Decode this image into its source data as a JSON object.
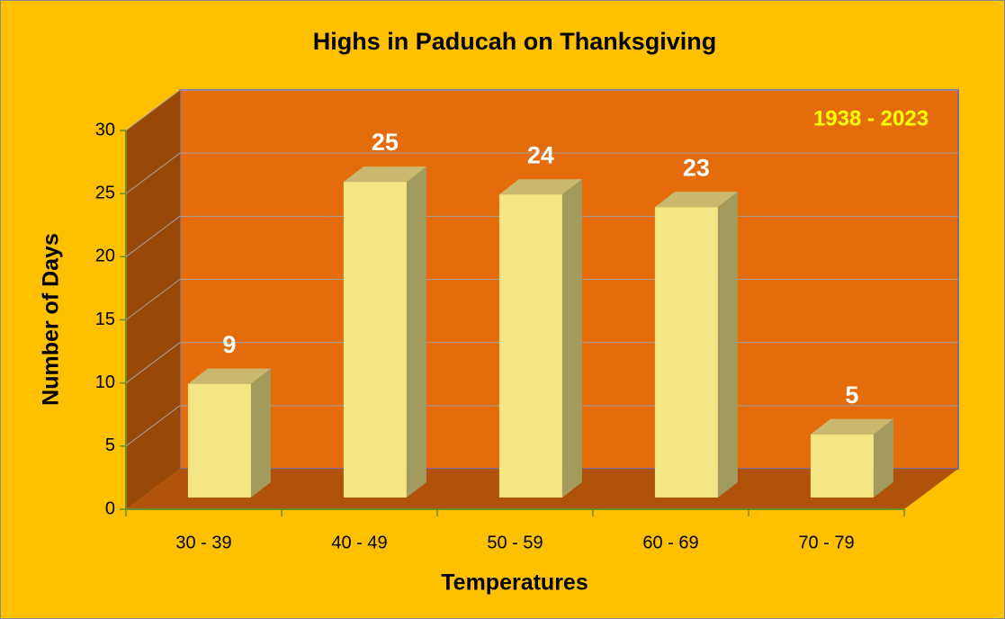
{
  "chart_data": {
    "type": "bar",
    "title": "Highs in Paducah on Thanksgiving",
    "annotation": "1938 - 2023",
    "xlabel": "Temperatures",
    "ylabel": "Number of Days",
    "categories": [
      "30 - 39",
      "40 - 49",
      "50 - 59",
      "60 - 69",
      "70 - 79"
    ],
    "values": [
      9,
      25,
      24,
      23,
      5
    ],
    "color": "#f4e685",
    "ylim": [
      0,
      30
    ],
    "yticks": [
      0,
      5,
      10,
      15,
      20,
      25,
      30
    ],
    "grid": true
  }
}
